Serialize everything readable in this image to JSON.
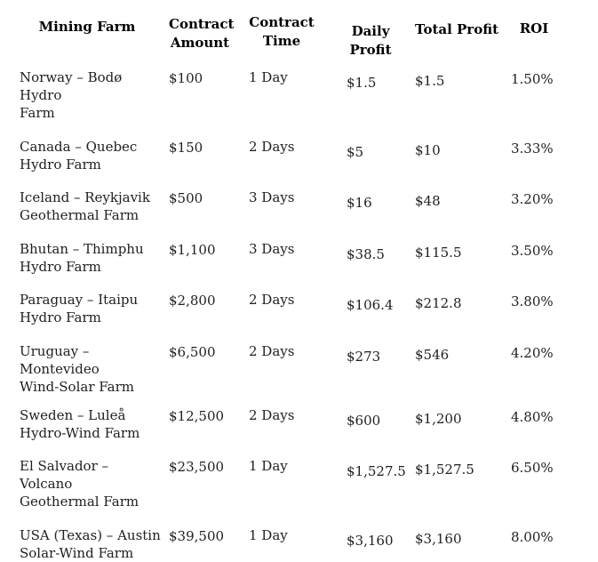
{
  "table": {
    "headers": {
      "farm": "Mining Farm",
      "amount": "Contract Amount",
      "time": "Contract Time",
      "daily": "Daily Profit",
      "total": "Total Profit",
      "roi": "ROI"
    },
    "rows": [
      {
        "farm": "Norway – Bodø Hydro\nFarm",
        "amount": "$100",
        "time": "1 Day",
        "daily": "$1.5",
        "total": "$1.5",
        "roi": "1.50%"
      },
      {
        "farm": "Canada – Quebec\nHydro Farm",
        "amount": "$150",
        "time": "2 Days",
        "daily": "$5",
        "total": "$10",
        "roi": "3.33%"
      },
      {
        "farm": "Iceland – Reykjavik\nGeothermal Farm",
        "amount": "$500",
        "time": "3 Days",
        "daily": "$16",
        "total": "$48",
        "roi": "3.20%"
      },
      {
        "farm": "Bhutan – Thimphu\nHydro Farm",
        "amount": "$1,100",
        "time": "3 Days",
        "daily": "$38.5",
        "total": "$115.5",
        "roi": "3.50%"
      },
      {
        "farm": "Paraguay – Itaipu\nHydro Farm",
        "amount": "$2,800",
        "time": "2 Days",
        "daily": "$106.4",
        "total": "$212.8",
        "roi": "3.80%"
      },
      {
        "farm": "Uruguay –\nMontevideo\nWind-Solar Farm",
        "amount": "$6,500",
        "time": "2 Days",
        "daily": "$273",
        "total": "$546",
        "roi": "4.20%"
      },
      {
        "farm": "Sweden – Luleå\nHydro-Wind Farm",
        "amount": "$12,500",
        "time": "2 Days",
        "daily": "$600",
        "total": "$1,200",
        "roi": "4.80%"
      },
      {
        "farm": "El Salvador – Volcano\nGeothermal Farm",
        "amount": "$23,500",
        "time": "1 Day",
        "daily": "$1,527.5",
        "total": "$1,527.5",
        "roi": "6.50%"
      },
      {
        "farm": "USA (Texas) – Austin\nSolar-Wind Farm",
        "amount": "$39,500",
        "time": "1 Day",
        "daily": "$3,160",
        "total": "$3,160",
        "roi": "8.00%"
      }
    ],
    "text_color": "#212121",
    "header_color": "#000000",
    "background_color": "#ffffff"
  }
}
